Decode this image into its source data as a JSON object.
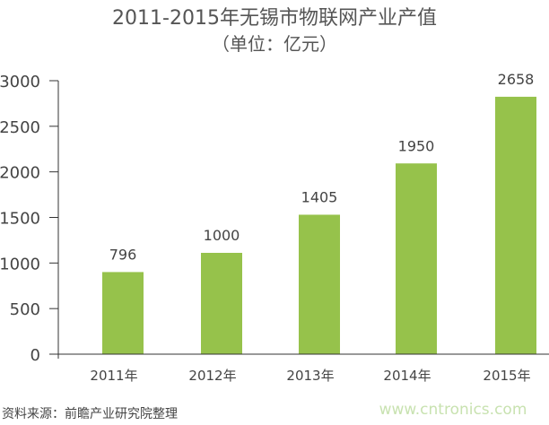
{
  "chart_data": {
    "type": "bar",
    "title": "2011-2015年无锡市物联网产业产值",
    "subtitle": "（单位：亿元）",
    "categories": [
      "2011年",
      "2012年",
      "2013年",
      "2014年",
      "2015年"
    ],
    "values": [
      796,
      1000,
      1405,
      1950,
      2658
    ],
    "data_labels": [
      "796",
      "1000",
      "1405",
      "1950",
      "2658"
    ],
    "ylim": [
      0,
      3000
    ],
    "yticks": [
      "0",
      "500",
      "1000",
      "1500",
      "2000",
      "2500",
      "3000"
    ],
    "xlabel": "",
    "ylabel": "",
    "grid": false,
    "bar_color": "#96c24b",
    "source": "资料来源：前瞻产业研究院整理",
    "watermark": "www.cntronics.com"
  }
}
